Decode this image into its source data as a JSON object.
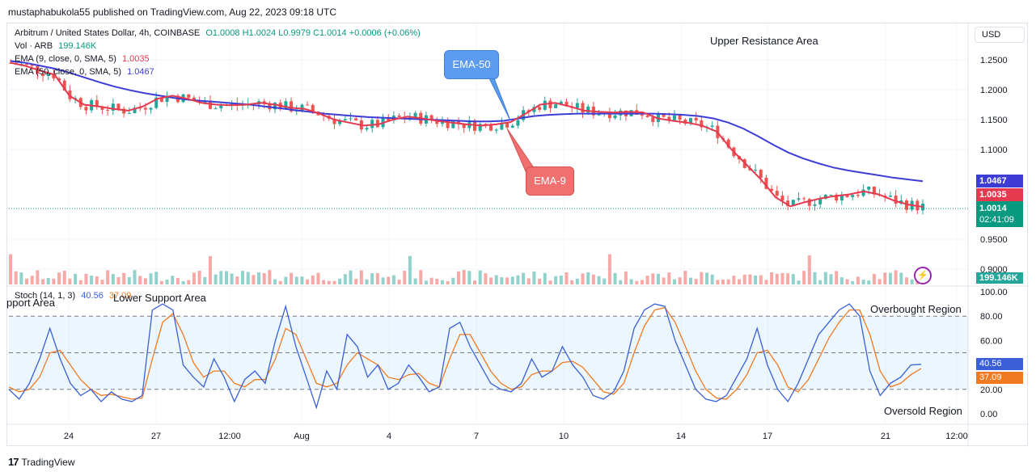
{
  "header": {
    "published_line": "mustaphabukola55 published on TradingView.com, Aug 22, 2023 09:18 UTC"
  },
  "legend": {
    "symbol": "Arbitrum / United States Dollar, 4h, COINBASE",
    "ohlc": "O1.0008  H1.0024  L0.9979  C1.0014  +0.0006 (+0.06%)",
    "vol_label": "Vol · ARB",
    "vol_value": "199.146K",
    "ema9_label": "EMA (9, close, 0, SMA, 5)",
    "ema9_value": "1.0035",
    "ema50_label": "EMA (50, close, 0, SMA, 5)",
    "ema50_value": "1.0467",
    "stoch_label": "Stoch (14, 1, 3)",
    "stoch_k": "40.56",
    "stoch_d": "37.09"
  },
  "currency_button": "USD",
  "annotations": {
    "upper_resistance": "Upper Resistance Area",
    "lower_support": "Lower Support Area",
    "support_partial": "pport Area",
    "overbought": "Overbought Region",
    "oversold": "Oversold Region",
    "ema50_callout": "EMA-50",
    "ema9_callout": "EMA-9"
  },
  "price_labels": {
    "ema50": "1.0467",
    "ema9": "1.0035",
    "last": "1.0014",
    "countdown": "02:41:09",
    "volume": "199.146K",
    "stoch_k": "40.56",
    "stoch_d": "37.09"
  },
  "footer": {
    "brand": "TradingView",
    "logo": "17"
  },
  "colors": {
    "up": "#26a69a",
    "down": "#ef5350",
    "ema9": "#e53950",
    "ema50": "#3d3dd6",
    "stoch_k": "#3a5fd6",
    "stoch_d": "#f07a22",
    "callout_blue": "#5b9bf0",
    "callout_red": "#f07070"
  },
  "chart_data": [
    {
      "type": "candlestick",
      "title": "Arbitrum / United States Dollar, 4h, COINBASE",
      "x_tick_labels": [
        "24",
        "27",
        "12:00",
        "Aug",
        "4",
        "7",
        "10",
        "14",
        "17",
        "21",
        "12:00"
      ],
      "y_tick_labels": [
        "1.2500",
        "1.2000",
        "1.1500",
        "1.1000",
        "0.9500",
        "0.9000"
      ],
      "ylim": [
        0.89,
        1.28
      ],
      "ema9_series": [
        1.245,
        1.24,
        1.232,
        1.225,
        1.19,
        1.175,
        1.172,
        1.168,
        1.165,
        1.172,
        1.185,
        1.19,
        1.185,
        1.178,
        1.175,
        1.174,
        1.175,
        1.178,
        1.175,
        1.17,
        1.168,
        1.16,
        1.15,
        1.145,
        1.14,
        1.142,
        1.15,
        1.155,
        1.152,
        1.148,
        1.145,
        1.142,
        1.14,
        1.142,
        1.146,
        1.16,
        1.175,
        1.178,
        1.172,
        1.165,
        1.163,
        1.162,
        1.163,
        1.162,
        1.152,
        1.148,
        1.145,
        1.14,
        1.13,
        1.1,
        1.075,
        1.05,
        1.02,
        1.005,
        1.012,
        1.018,
        1.022,
        1.025,
        1.03,
        1.025,
        1.015,
        1.008,
        1.004
      ],
      "ema50_series": [
        1.248,
        1.245,
        1.24,
        1.235,
        1.228,
        1.22,
        1.212,
        1.205,
        1.199,
        1.194,
        1.19,
        1.186,
        1.183,
        1.181,
        1.179,
        1.177,
        1.175,
        1.172,
        1.169,
        1.166,
        1.163,
        1.16,
        1.158,
        1.156,
        1.154,
        1.153,
        1.152,
        1.151,
        1.15,
        1.149,
        1.148,
        1.147,
        1.147,
        1.148,
        1.152,
        1.156,
        1.158,
        1.159,
        1.16,
        1.16,
        1.16,
        1.16,
        1.16,
        1.16,
        1.159,
        1.158,
        1.156,
        1.152,
        1.145,
        1.135,
        1.122,
        1.108,
        1.095,
        1.085,
        1.077,
        1.07,
        1.065,
        1.061,
        1.057,
        1.053,
        1.05,
        1.047
      ],
      "last_price": 1.0014,
      "volume_last": "199.146K"
    },
    {
      "type": "line",
      "title": "Stoch (14, 1, 3)",
      "y_tick_labels": [
        "100.00",
        "80.00",
        "60.00",
        "20.00",
        "0.00"
      ],
      "ylim": [
        0,
        100
      ],
      "levels": [
        80,
        50,
        20
      ],
      "series": [
        {
          "name": "%K",
          "values": [
            20,
            12,
            25,
            45,
            70,
            45,
            25,
            15,
            20,
            10,
            18,
            12,
            10,
            15,
            85,
            90,
            85,
            40,
            30,
            22,
            45,
            30,
            10,
            28,
            35,
            25,
            60,
            88,
            55,
            30,
            5,
            35,
            20,
            65,
            55,
            30,
            40,
            20,
            25,
            40,
            30,
            18,
            22,
            70,
            75,
            55,
            40,
            25,
            20,
            18,
            25,
            45,
            30,
            35,
            55,
            40,
            30,
            15,
            12,
            18,
            35,
            70,
            85,
            90,
            88,
            60,
            40,
            20,
            12,
            10,
            15,
            30,
            45,
            70,
            40,
            20,
            10,
            25,
            45,
            65,
            75,
            85,
            90,
            80,
            35,
            15,
            25,
            30,
            40,
            40.56
          ]
        },
        {
          "name": "%D",
          "values": [
            22,
            18,
            20,
            30,
            50,
            52,
            40,
            28,
            20,
            15,
            16,
            14,
            12,
            13,
            45,
            75,
            82,
            65,
            42,
            30,
            35,
            35,
            25,
            22,
            28,
            28,
            45,
            70,
            65,
            45,
            25,
            22,
            25,
            40,
            50,
            45,
            40,
            30,
            28,
            32,
            33,
            25,
            22,
            45,
            65,
            65,
            50,
            35,
            25,
            20,
            22,
            32,
            35,
            35,
            42,
            43,
            38,
            28,
            18,
            16,
            25,
            50,
            72,
            85,
            87,
            75,
            55,
            35,
            20,
            13,
            12,
            20,
            32,
            50,
            52,
            40,
            22,
            18,
            28,
            45,
            62,
            75,
            85,
            85,
            65,
            35,
            22,
            25,
            32,
            37.09
          ]
        }
      ]
    }
  ]
}
